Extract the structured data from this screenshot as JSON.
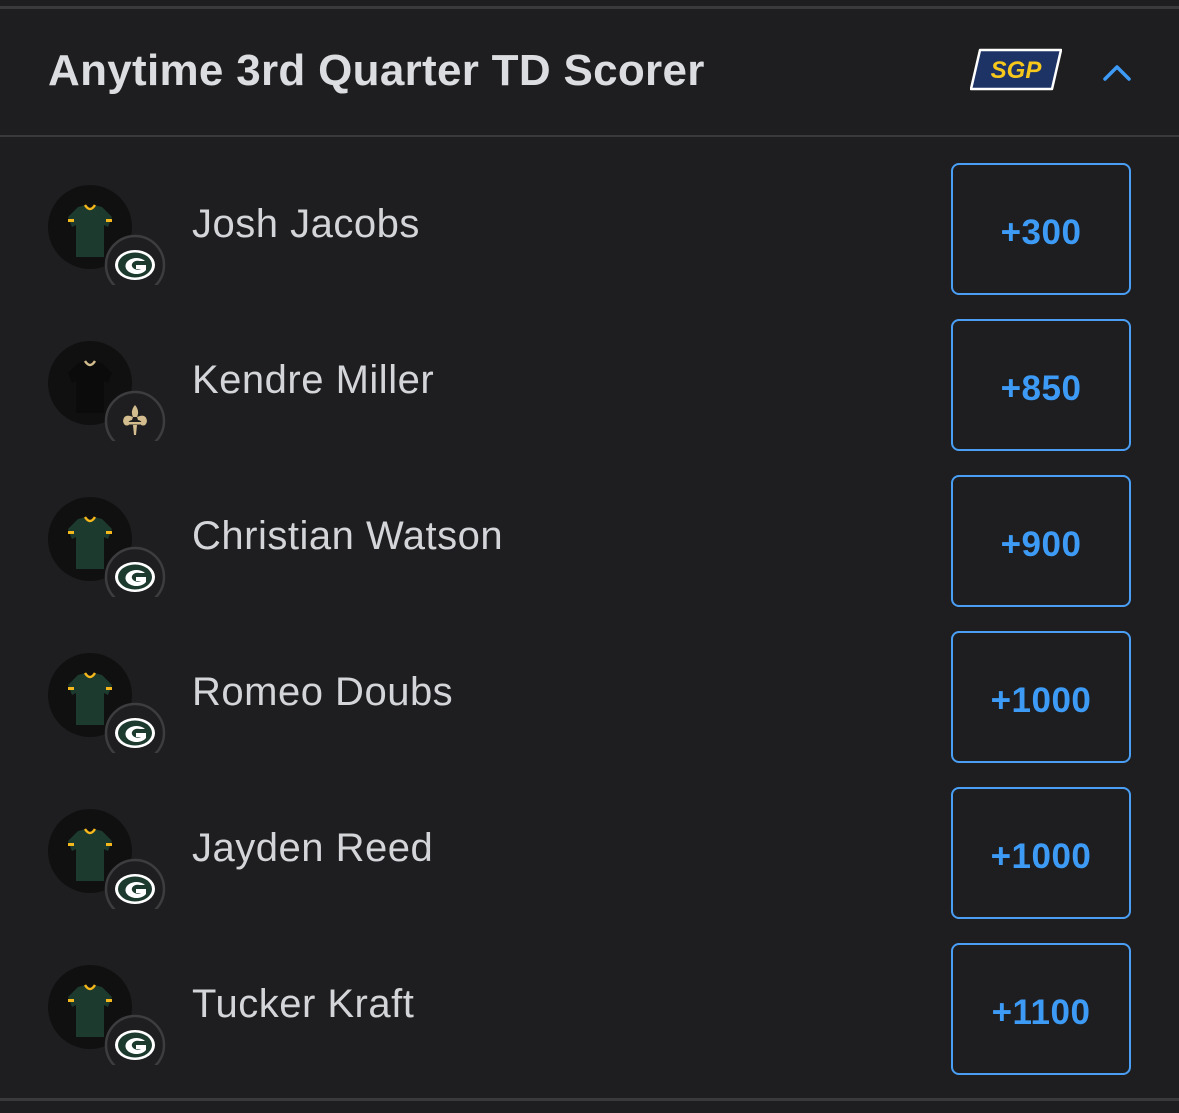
{
  "header": {
    "title": "Anytime 3rd Quarter TD Scorer",
    "badge": "SGP",
    "collapse_icon": "chevron-up-icon"
  },
  "colors": {
    "background": "#1e1e20",
    "accent": "#3d9bf6",
    "packers_green": "#1d3a2e",
    "packers_gold": "#f4b81c",
    "badge_bg": "#1d3366",
    "badge_text": "#f6c81b"
  },
  "players": [
    {
      "name": "Josh Jacobs",
      "team": "packers",
      "team_icon": "packers-logo-icon",
      "odds": "+300"
    },
    {
      "name": "Kendre Miller",
      "team": "saints",
      "team_icon": "saints-logo-icon",
      "odds": "+850"
    },
    {
      "name": "Christian Watson",
      "team": "packers",
      "team_icon": "packers-logo-icon",
      "odds": "+900"
    },
    {
      "name": "Romeo Doubs",
      "team": "packers",
      "team_icon": "packers-logo-icon",
      "odds": "+1000"
    },
    {
      "name": "Jayden Reed",
      "team": "packers",
      "team_icon": "packers-logo-icon",
      "odds": "+1000"
    },
    {
      "name": "Tucker Kraft",
      "team": "packers",
      "team_icon": "packers-logo-icon",
      "odds": "+1100"
    }
  ]
}
